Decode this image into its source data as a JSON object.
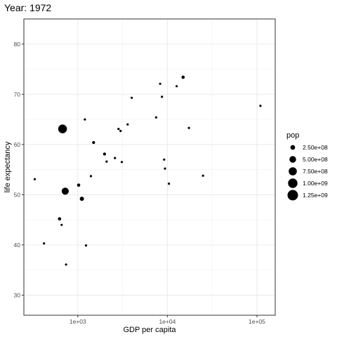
{
  "chart_data": {
    "type": "scatter",
    "title": "Year: 1972",
    "xlabel": "GDP per capita",
    "ylabel": "life expectancy",
    "x_scale": "log10",
    "xlim": [
      250,
      160000
    ],
    "ylim": [
      26,
      85
    ],
    "x_ticks": [
      {
        "value": 1000,
        "label": "1e+03"
      },
      {
        "value": 10000,
        "label": "1e+04"
      },
      {
        "value": 100000,
        "label": "1e+05"
      }
    ],
    "y_ticks": [
      {
        "value": 30,
        "label": "30"
      },
      {
        "value": 40,
        "label": "40"
      },
      {
        "value": 50,
        "label": "50"
      },
      {
        "value": 60,
        "label": "60"
      },
      {
        "value": 70,
        "label": "70"
      },
      {
        "value": 80,
        "label": "80"
      }
    ],
    "grid": true,
    "legend": {
      "title": "pop",
      "position": "right",
      "entries": [
        {
          "label": "2.50e+08",
          "value": 250000000
        },
        {
          "label": "5.00e+08",
          "value": 500000000
        },
        {
          "label": "7.50e+08",
          "value": 750000000
        },
        {
          "label": "1.00e+09",
          "value": 1000000000
        },
        {
          "label": "1.25e+09",
          "value": 1250000000
        }
      ]
    },
    "size_range_pop": [
      0,
      1250000000
    ],
    "color": "#000000",
    "points": [
      {
        "x": 331,
        "y": 53.1,
        "pop": 40000000
      },
      {
        "x": 420,
        "y": 40.3,
        "pop": 12000000
      },
      {
        "x": 625,
        "y": 45.2,
        "pop": 120000000
      },
      {
        "x": 660,
        "y": 44.0,
        "pop": 20000000
      },
      {
        "x": 676,
        "y": 63.1,
        "pop": 862000000
      },
      {
        "x": 724,
        "y": 50.7,
        "pop": 567000000
      },
      {
        "x": 739,
        "y": 36.1,
        "pop": 15000000
      },
      {
        "x": 1022,
        "y": 51.9,
        "pop": 120000000
      },
      {
        "x": 1110,
        "y": 49.2,
        "pop": 200000000
      },
      {
        "x": 1200,
        "y": 65.0,
        "pop": 30000000
      },
      {
        "x": 1235,
        "y": 39.9,
        "pop": 20000000
      },
      {
        "x": 1400,
        "y": 53.7,
        "pop": 15000000
      },
      {
        "x": 1500,
        "y": 60.4,
        "pop": 100000000
      },
      {
        "x": 1989,
        "y": 58.1,
        "pop": 100000000
      },
      {
        "x": 2100,
        "y": 56.6,
        "pop": 15000000
      },
      {
        "x": 2600,
        "y": 57.3,
        "pop": 30000000
      },
      {
        "x": 2850,
        "y": 63.1,
        "pop": 50000000
      },
      {
        "x": 3000,
        "y": 62.7,
        "pop": 60000000
      },
      {
        "x": 3100,
        "y": 56.5,
        "pop": 15000000
      },
      {
        "x": 3600,
        "y": 64.0,
        "pop": 40000000
      },
      {
        "x": 4000,
        "y": 69.3,
        "pop": 50000000
      },
      {
        "x": 7500,
        "y": 65.4,
        "pop": 30000000
      },
      {
        "x": 8300,
        "y": 72.1,
        "pop": 30000000
      },
      {
        "x": 8700,
        "y": 69.5,
        "pop": 40000000
      },
      {
        "x": 9200,
        "y": 57.0,
        "pop": 30000000
      },
      {
        "x": 9400,
        "y": 55.2,
        "pop": 50000000
      },
      {
        "x": 10400,
        "y": 52.2,
        "pop": 12000000
      },
      {
        "x": 12700,
        "y": 71.6,
        "pop": 30000000
      },
      {
        "x": 15000,
        "y": 73.4,
        "pop": 120000000
      },
      {
        "x": 17400,
        "y": 63.3,
        "pop": 12000000
      },
      {
        "x": 25000,
        "y": 53.8,
        "pop": 15000000
      },
      {
        "x": 109348,
        "y": 67.7,
        "pop": 8000000
      }
    ]
  }
}
